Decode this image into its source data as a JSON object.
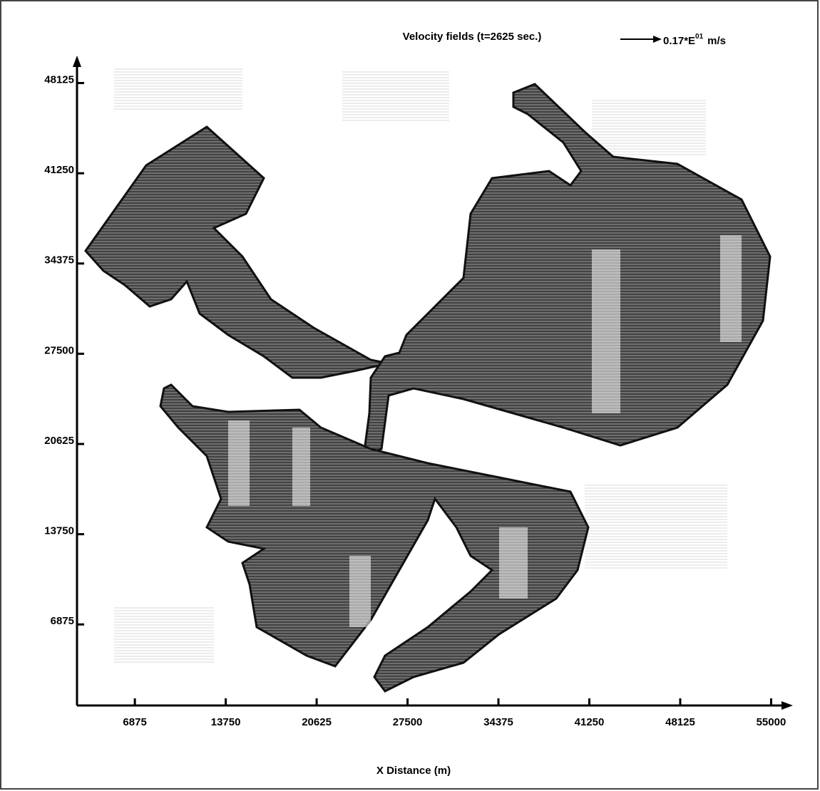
{
  "chart_data": {
    "type": "vector-field",
    "title": "Velocity fields (t=2625 sec.)",
    "legend_text": "0.17*E",
    "legend_exponent": "01",
    "legend_unit": "m/s",
    "xlabel": "X Distance (m)",
    "xlim": [
      2500,
      56000
    ],
    "xticks": [
      6875,
      13750,
      20625,
      27500,
      34375,
      41250,
      48125,
      55000
    ],
    "ylim": [
      700,
      50000
    ],
    "yticks": [
      6875,
      13750,
      20625,
      27500,
      34375,
      41250,
      48125
    ]
  }
}
